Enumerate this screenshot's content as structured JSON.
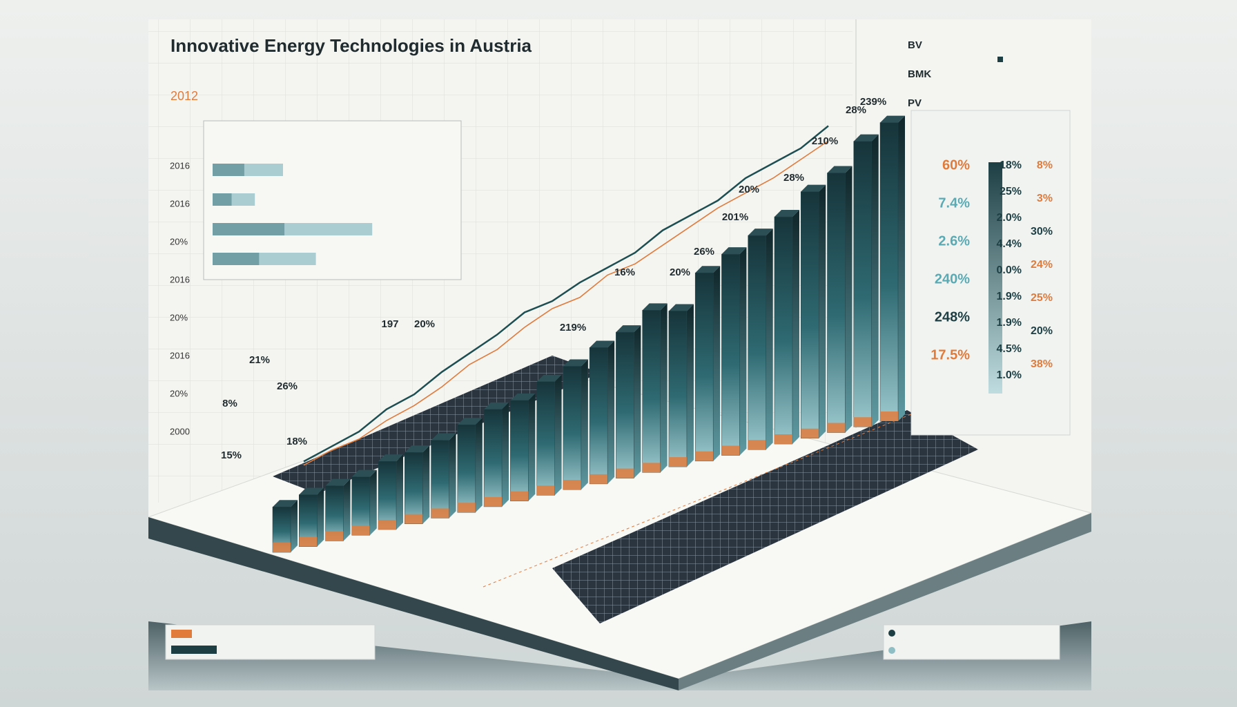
{
  "title": "Innovative Energy Technologies in Austria",
  "year": "2012",
  "legend_top": [
    "BV",
    "BMK",
    "PV"
  ],
  "axis_labels": [
    "2016",
    "2016",
    "20%",
    "2016",
    "20%",
    "2016",
    "20%",
    "2000"
  ],
  "annotations": [
    "21%",
    "26%",
    "8%",
    "15%",
    "18%",
    "197",
    "20%",
    "219%",
    "16%",
    "20%",
    "26%",
    "201%",
    "20%",
    "28%",
    "210%",
    "28%",
    "239%"
  ],
  "side_table": {
    "columns": [
      [
        "60%",
        "7.4%",
        "2.6%",
        "240%",
        "248%",
        "17.5%"
      ],
      [
        "18%",
        "25%",
        "2.0%",
        "4.4%",
        "0.0%",
        "1.9%",
        "1.9%",
        "4.5%",
        "1.0%"
      ],
      [
        "8%",
        "3%",
        "30%",
        "24%",
        "25%",
        "20%",
        "38%"
      ]
    ]
  },
  "chart_data": [
    {
      "type": "bar3d",
      "color": "#1d3f44",
      "ylim": [
        0,
        100
      ],
      "values": [
        14,
        16,
        17,
        18,
        21,
        22,
        24,
        27,
        30,
        31,
        35,
        38,
        42,
        45,
        50,
        48,
        58,
        62,
        66,
        70,
        76,
        80,
        88,
        92
      ]
    },
    {
      "type": "line",
      "ylim": [
        0,
        100
      ],
      "series": [
        {
          "color": "#1d4e52",
          "values": [
            4,
            8,
            12,
            18,
            22,
            28,
            33,
            38,
            44,
            47,
            52,
            56,
            60,
            66,
            70,
            74,
            80,
            84,
            88,
            94
          ]
        },
        {
          "color": "#e07b3c",
          "values": [
            3,
            7,
            10,
            15,
            19,
            24,
            30,
            34,
            40,
            45,
            48,
            54,
            57,
            62,
            67,
            72,
            76,
            80,
            85,
            90
          ]
        }
      ]
    },
    {
      "type": "hbar",
      "xlim": [
        0,
        100
      ],
      "colors": [
        "#1d3f44",
        "#8fbfc5"
      ],
      "values": [
        30,
        18,
        68,
        44
      ]
    }
  ]
}
